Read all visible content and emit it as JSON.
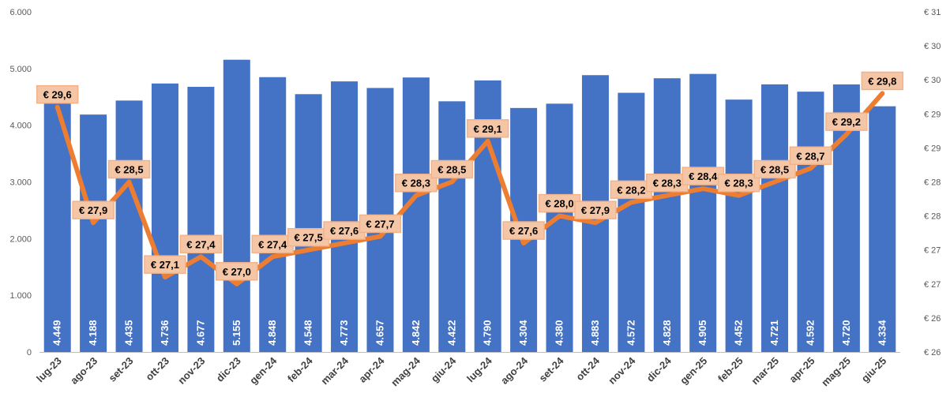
{
  "chart_data": {
    "type": "bar",
    "categories": [
      "lug-23",
      "ago-23",
      "set-23",
      "ott-23",
      "nov-23",
      "dic-23",
      "gen-24",
      "feb-24",
      "mar-24",
      "apr-24",
      "mag-24",
      "giu-24",
      "lug-24",
      "ago-24",
      "set-24",
      "ott-24",
      "nov-24",
      "dic-24",
      "gen-25",
      "feb-25",
      "mar-25",
      "apr-25",
      "mag-25",
      "giu-25"
    ],
    "series": [
      {
        "type": "bar",
        "axis": "left",
        "color": "#4472c4",
        "values": [
          4449,
          4188,
          4435,
          4736,
          4677,
          5155,
          4848,
          4548,
          4773,
          4657,
          4842,
          4422,
          4790,
          4304,
          4380,
          4883,
          4572,
          4828,
          4905,
          4452,
          4721,
          4592,
          4720,
          4334
        ],
        "labels": [
          "4.449",
          "4.188",
          "4.435",
          "4.736",
          "4.677",
          "5.155",
          "4.848",
          "4.548",
          "4.773",
          "4.657",
          "4.842",
          "4.422",
          "4.790",
          "4.304",
          "4.380",
          "4.883",
          "4.572",
          "4.828",
          "4.905",
          "4.452",
          "4.721",
          "4.592",
          "4.720",
          "4.334"
        ]
      },
      {
        "type": "line",
        "axis": "right",
        "color": "#ed7d31",
        "values": [
          29.6,
          27.9,
          28.5,
          27.1,
          27.4,
          27.0,
          27.4,
          27.5,
          27.6,
          27.7,
          28.3,
          28.5,
          29.1,
          27.6,
          28.0,
          27.9,
          28.2,
          28.3,
          28.4,
          28.3,
          28.5,
          28.7,
          29.2,
          29.8
        ],
        "labels": [
          "€ 29,6",
          "€ 27,9",
          "€ 28,5",
          "€ 27,1",
          "€ 27,4",
          "€ 27,0",
          "€ 27,4",
          "€ 27,5",
          "€ 27,6",
          "€ 27,7",
          "€ 28,3",
          "€ 28,5",
          "€ 29,1",
          "€ 27,6",
          "€ 28,0",
          "€ 27,9",
          "€ 28,2",
          "€ 28,3",
          "€ 28,4",
          "€ 28,3",
          "€ 28,5",
          "€ 28,7",
          "€ 29,2",
          "€ 29,8"
        ]
      }
    ],
    "left_axis": {
      "ylim": [
        0,
        6000
      ],
      "tick_values": [
        0,
        1000,
        2000,
        3000,
        4000,
        5000,
        6000
      ],
      "tick_labels": [
        "0",
        "1.000",
        "2.000",
        "3.000",
        "4.000",
        "5.000",
        "6.000"
      ]
    },
    "right_axis": {
      "ylim": [
        26,
        31
      ],
      "tick_values": [
        26,
        26.5,
        27,
        27.5,
        28,
        28.5,
        29,
        29.5,
        30,
        30.5,
        31
      ],
      "tick_labels": [
        "€ 26",
        "€ 26",
        "€ 27",
        "€ 27",
        "€ 28",
        "€ 28",
        "€ 29",
        "€ 29",
        "€ 30",
        "€ 30",
        "€ 31"
      ]
    },
    "grid": false,
    "legend": "none"
  }
}
